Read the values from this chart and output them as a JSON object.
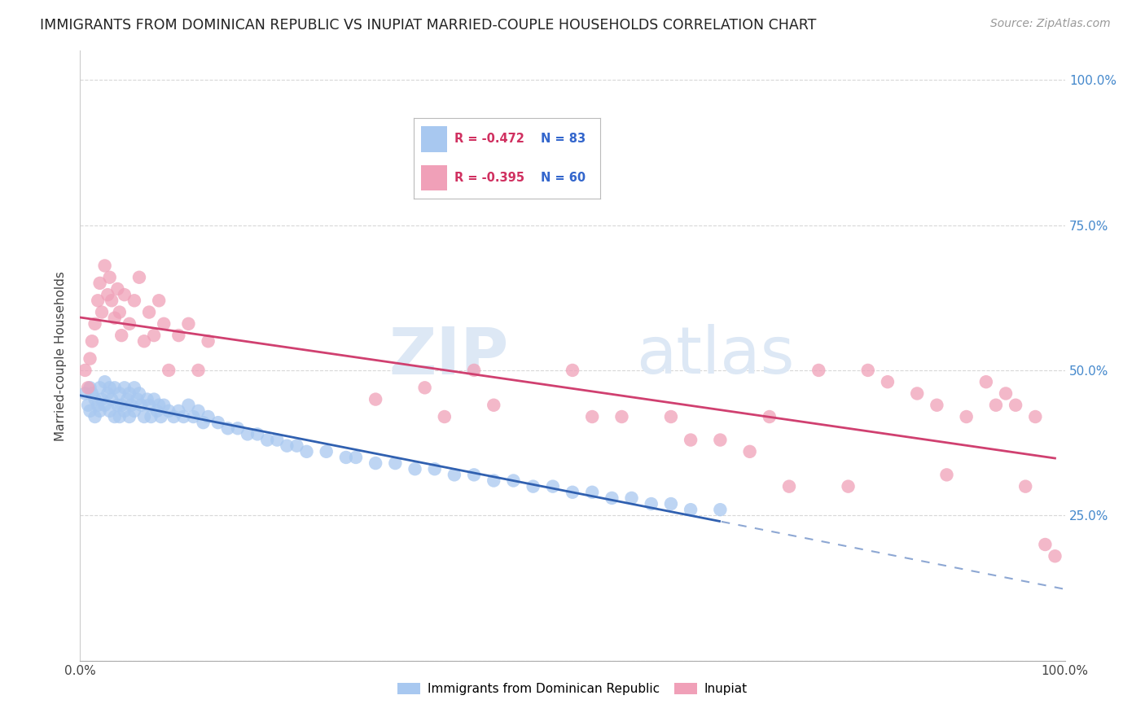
{
  "title": "IMMIGRANTS FROM DOMINICAN REPUBLIC VS INUPIAT MARRIED-COUPLE HOUSEHOLDS CORRELATION CHART",
  "source": "Source: ZipAtlas.com",
  "ylabel": "Married-couple Households",
  "series1_label": "Immigrants from Dominican Republic",
  "series1_R": "-0.472",
  "series1_N": "83",
  "series1_color": "#a8c8f0",
  "series1_line_color": "#3060b0",
  "series2_label": "Inupiat",
  "series2_R": "-0.395",
  "series2_N": "60",
  "series2_color": "#f0a0b8",
  "series2_line_color": "#d04070",
  "watermark_zip": "ZIP",
  "watermark_atlas": "atlas",
  "background_color": "#ffffff",
  "grid_color": "#d8d8d8",
  "right_axis_color": "#4488cc",
  "title_fontsize": 12.5,
  "source_fontsize": 10,
  "legend_R_color": "#d03060",
  "legend_N_color": "#3366cc",
  "series1_x": [
    0.005,
    0.008,
    0.01,
    0.01,
    0.012,
    0.015,
    0.015,
    0.018,
    0.02,
    0.02,
    0.022,
    0.025,
    0.025,
    0.028,
    0.03,
    0.03,
    0.032,
    0.035,
    0.035,
    0.038,
    0.04,
    0.04,
    0.042,
    0.045,
    0.045,
    0.048,
    0.05,
    0.05,
    0.052,
    0.055,
    0.055,
    0.058,
    0.06,
    0.062,
    0.065,
    0.068,
    0.07,
    0.072,
    0.075,
    0.078,
    0.08,
    0.082,
    0.085,
    0.09,
    0.095,
    0.1,
    0.105,
    0.11,
    0.115,
    0.12,
    0.125,
    0.13,
    0.14,
    0.15,
    0.16,
    0.17,
    0.18,
    0.19,
    0.2,
    0.21,
    0.22,
    0.23,
    0.25,
    0.27,
    0.28,
    0.3,
    0.32,
    0.34,
    0.36,
    0.38,
    0.4,
    0.42,
    0.44,
    0.46,
    0.48,
    0.5,
    0.52,
    0.54,
    0.56,
    0.58,
    0.6,
    0.62,
    0.65
  ],
  "series1_y": [
    0.46,
    0.44,
    0.47,
    0.43,
    0.46,
    0.45,
    0.42,
    0.44,
    0.47,
    0.43,
    0.45,
    0.48,
    0.44,
    0.46,
    0.47,
    0.43,
    0.45,
    0.47,
    0.42,
    0.44,
    0.46,
    0.42,
    0.44,
    0.47,
    0.43,
    0.45,
    0.46,
    0.42,
    0.44,
    0.47,
    0.43,
    0.45,
    0.46,
    0.44,
    0.42,
    0.45,
    0.44,
    0.42,
    0.45,
    0.43,
    0.44,
    0.42,
    0.44,
    0.43,
    0.42,
    0.43,
    0.42,
    0.44,
    0.42,
    0.43,
    0.41,
    0.42,
    0.41,
    0.4,
    0.4,
    0.39,
    0.39,
    0.38,
    0.38,
    0.37,
    0.37,
    0.36,
    0.36,
    0.35,
    0.35,
    0.34,
    0.34,
    0.33,
    0.33,
    0.32,
    0.32,
    0.31,
    0.31,
    0.3,
    0.3,
    0.29,
    0.29,
    0.28,
    0.28,
    0.27,
    0.27,
    0.26,
    0.26
  ],
  "series2_x": [
    0.005,
    0.008,
    0.01,
    0.012,
    0.015,
    0.018,
    0.02,
    0.022,
    0.025,
    0.028,
    0.03,
    0.032,
    0.035,
    0.038,
    0.04,
    0.042,
    0.045,
    0.05,
    0.055,
    0.06,
    0.065,
    0.07,
    0.075,
    0.08,
    0.085,
    0.09,
    0.1,
    0.11,
    0.12,
    0.13,
    0.3,
    0.35,
    0.37,
    0.4,
    0.42,
    0.5,
    0.52,
    0.55,
    0.6,
    0.62,
    0.65,
    0.68,
    0.7,
    0.72,
    0.75,
    0.78,
    0.8,
    0.82,
    0.85,
    0.87,
    0.88,
    0.9,
    0.92,
    0.93,
    0.94,
    0.95,
    0.96,
    0.97,
    0.98,
    0.99
  ],
  "series2_y": [
    0.5,
    0.47,
    0.52,
    0.55,
    0.58,
    0.62,
    0.65,
    0.6,
    0.68,
    0.63,
    0.66,
    0.62,
    0.59,
    0.64,
    0.6,
    0.56,
    0.63,
    0.58,
    0.62,
    0.66,
    0.55,
    0.6,
    0.56,
    0.62,
    0.58,
    0.5,
    0.56,
    0.58,
    0.5,
    0.55,
    0.45,
    0.47,
    0.42,
    0.5,
    0.44,
    0.5,
    0.42,
    0.42,
    0.42,
    0.38,
    0.38,
    0.36,
    0.42,
    0.3,
    0.5,
    0.3,
    0.5,
    0.48,
    0.46,
    0.44,
    0.32,
    0.42,
    0.48,
    0.44,
    0.46,
    0.44,
    0.3,
    0.42,
    0.2,
    0.18
  ]
}
